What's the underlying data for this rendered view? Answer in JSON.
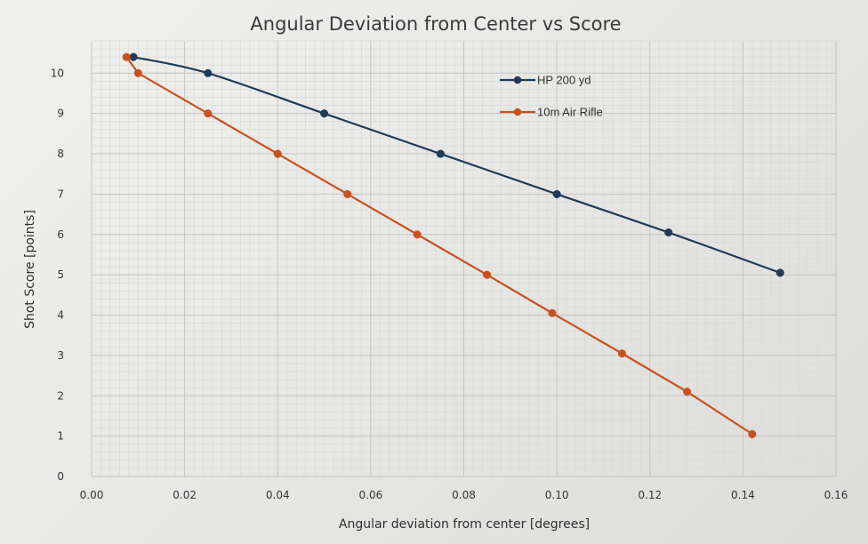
{
  "chart_data": {
    "type": "line",
    "title": "Angular Deviation from Center vs Score",
    "xlabel": "Angular deviation from center [degrees]",
    "ylabel": "Shot Score [points]",
    "xlim": [
      0,
      0.16
    ],
    "ylim": [
      0,
      10.8
    ],
    "x_ticks": [
      "0.00",
      "0.02",
      "0.04",
      "0.06",
      "0.08",
      "0.10",
      "0.12",
      "0.14",
      "0.16"
    ],
    "y_ticks": [
      "0",
      "1",
      "2",
      "3",
      "4",
      "5",
      "6",
      "7",
      "8",
      "9",
      "10"
    ],
    "grid": true,
    "legend_position": "top-right",
    "series": [
      {
        "name": "HP 200 yd",
        "color": "#1f3a5a",
        "marker": "circle",
        "smooth": true,
        "points": [
          [
            0.009,
            10.4
          ],
          [
            0.025,
            10.0
          ],
          [
            0.05,
            9.0
          ],
          [
            0.075,
            8.0
          ],
          [
            0.1,
            7.0
          ],
          [
            0.124,
            6.05
          ],
          [
            0.148,
            5.05
          ]
        ]
      },
      {
        "name": "10m Air Rifle",
        "color": "#c8521e",
        "marker": "circle",
        "smooth": false,
        "points": [
          [
            0.0075,
            10.4
          ],
          [
            0.01,
            10.0
          ],
          [
            0.025,
            9.0
          ],
          [
            0.04,
            8.0
          ],
          [
            0.055,
            7.0
          ],
          [
            0.07,
            6.0
          ],
          [
            0.085,
            5.0
          ],
          [
            0.099,
            4.05
          ],
          [
            0.114,
            3.05
          ],
          [
            0.128,
            2.1
          ],
          [
            0.142,
            1.05
          ]
        ]
      }
    ]
  }
}
